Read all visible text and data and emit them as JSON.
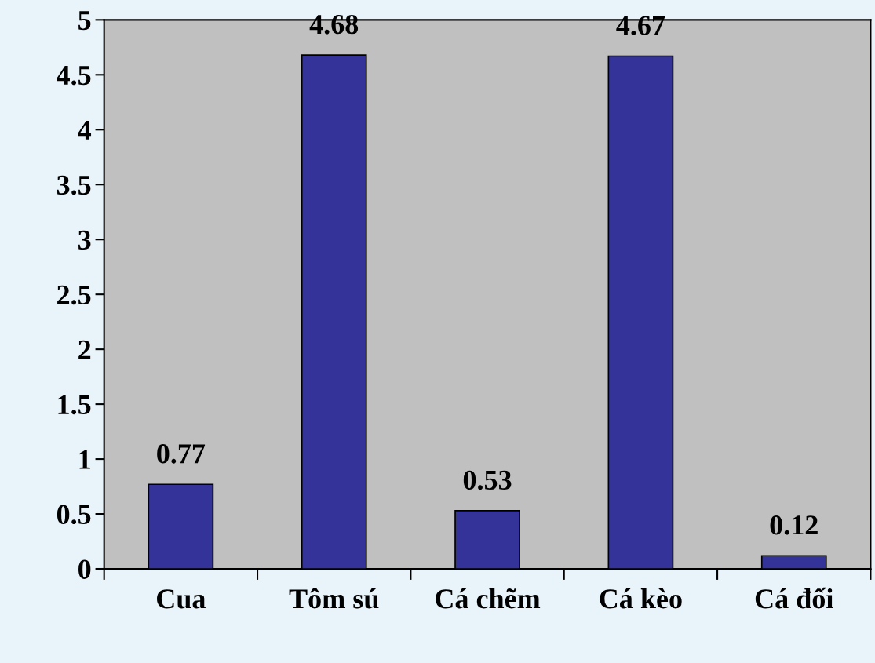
{
  "chart_data": {
    "type": "bar",
    "categories": [
      "Cua",
      "Tôm sú",
      "Cá chẽm",
      "Cá kèo",
      "Cá đối"
    ],
    "values": [
      0.77,
      4.68,
      0.53,
      4.67,
      0.12
    ],
    "color": "#333399",
    "ylim": [
      0,
      5
    ],
    "yticks": [
      0,
      0.5,
      1,
      1.5,
      2,
      2.5,
      3,
      3.5,
      4,
      4.5,
      5
    ],
    "data_labels": true,
    "grid": false
  }
}
